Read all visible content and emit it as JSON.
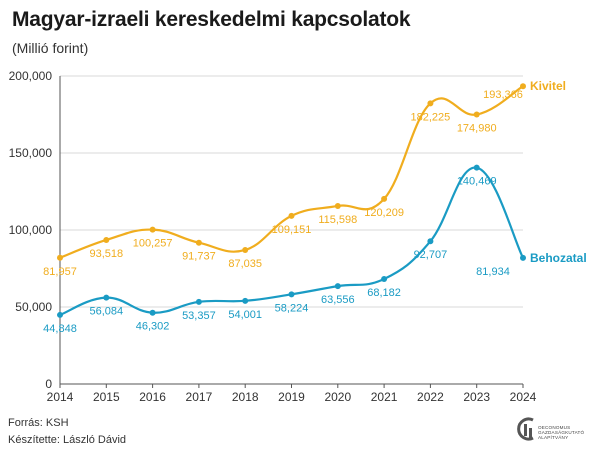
{
  "title": "Magyar-izraeli kereskedelmi kapcsolatok",
  "subtitle": "(Millió forint)",
  "footer": {
    "source": "Forrás: KSH",
    "author": "Készítette: László Dávid"
  },
  "logo": {
    "icon": "gki-logo-icon",
    "lines": [
      "OECONOMUS",
      "GAZDASÁGKUTATÓ",
      "ALAPÍTVÁNY"
    ]
  },
  "chart_data": {
    "type": "line",
    "categories": [
      "2014",
      "2015",
      "2016",
      "2017",
      "2018",
      "2019",
      "2020",
      "2021",
      "2022",
      "2023",
      "2024"
    ],
    "series": [
      {
        "name": "Kivitel",
        "color": "#f0ad1e",
        "values": [
          81957,
          93518,
          100257,
          91737,
          87035,
          109151,
          115598,
          120209,
          182225,
          174980,
          193366
        ],
        "labels": [
          "81,957",
          "93,518",
          "100,257",
          "91,737",
          "87,035",
          "109,151",
          "115,598",
          "120,209",
          "182,225",
          "174,980",
          "193,366"
        ]
      },
      {
        "name": "Behozatal",
        "color": "#1a9bc4",
        "values": [
          44848,
          56084,
          46302,
          53357,
          54001,
          58224,
          63556,
          68182,
          92707,
          140469,
          81934
        ],
        "labels": [
          "44,848",
          "56,084",
          "46,302",
          "53,357",
          "54,001",
          "58,224",
          "63,556",
          "68,182",
          "92,707",
          "140,469",
          "81,934"
        ]
      }
    ],
    "ylim": [
      0,
      200000
    ],
    "yticks": [
      0,
      50000,
      100000,
      150000,
      200000
    ],
    "ytick_labels": [
      "0",
      "50,000",
      "100,000",
      "150,000",
      "200,000"
    ],
    "grid": "horizontal",
    "legend": "end-of-line labels",
    "curve": "smooth"
  }
}
